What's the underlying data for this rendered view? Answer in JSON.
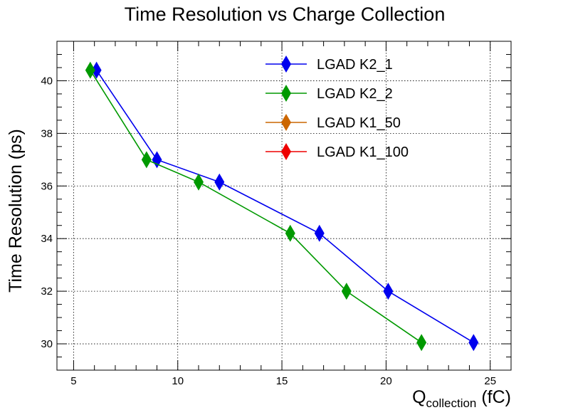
{
  "chart_data": {
    "type": "line",
    "title": "Time Resolution vs Charge Collection",
    "xlabel": "Q",
    "xlabel_subscript": "collection",
    "xlabel_unit": " (fC)",
    "ylabel": "Time Resolution (ps)",
    "xlim": [
      4.2,
      26.0
    ],
    "ylim": [
      29.0,
      41.5
    ],
    "x_ticks": [
      5,
      10,
      15,
      20,
      25
    ],
    "y_ticks": [
      30,
      32,
      34,
      36,
      38,
      40
    ],
    "grid": true,
    "legend_position": "top-right",
    "series": [
      {
        "name": "LGAD K2_1",
        "color": "#0000ee",
        "marker": "diamond",
        "x": [
          6.1,
          9.0,
          12.0,
          16.8,
          20.1,
          24.2
        ],
        "y": [
          40.4,
          37.0,
          36.15,
          34.2,
          32.0,
          30.05
        ]
      },
      {
        "name": "LGAD K2_2",
        "color": "#009900",
        "marker": "diamond",
        "x": [
          5.8,
          8.5,
          11.0,
          15.4,
          18.1,
          21.7
        ],
        "y": [
          40.4,
          37.0,
          36.15,
          34.2,
          32.0,
          30.05
        ]
      },
      {
        "name": "LGAD K1_50",
        "color": "#cc6600",
        "marker": "diamond",
        "x": [],
        "y": []
      },
      {
        "name": "LGAD K1_100",
        "color": "#ee0000",
        "marker": "diamond",
        "x": [],
        "y": []
      }
    ]
  }
}
